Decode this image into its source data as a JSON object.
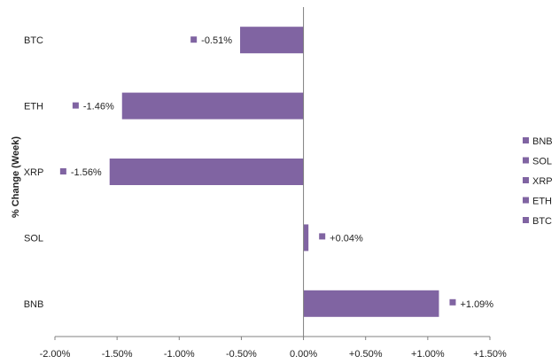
{
  "chart_data": {
    "type": "bar",
    "orientation": "horizontal",
    "title": "",
    "xlabel": "",
    "ylabel": "% Change (Week)",
    "categories": [
      "BTC",
      "ETH",
      "XRP",
      "SOL",
      "BNB"
    ],
    "values": [
      -0.51,
      -1.46,
      -1.56,
      0.04,
      1.09
    ],
    "data_labels": [
      "-0.51%",
      "-1.46%",
      "-1.56%",
      "+0.04%",
      "+1.09%"
    ],
    "xlim": [
      -2.0,
      1.5
    ],
    "x_ticks": [
      -2.0,
      -1.5,
      -1.0,
      -0.5,
      0.0,
      0.5,
      1.0,
      1.5
    ],
    "x_tick_labels": [
      "-2.00%",
      "-1.50%",
      "-1.00%",
      "-0.50%",
      "0.00%",
      "+0.50%",
      "+1.00%",
      "+1.50%"
    ],
    "legend": {
      "placement": "right",
      "entries": [
        "BNB",
        "SOL",
        "XRP",
        "ETH",
        "BTC"
      ]
    },
    "grid": false,
    "color": "#8064a2"
  }
}
